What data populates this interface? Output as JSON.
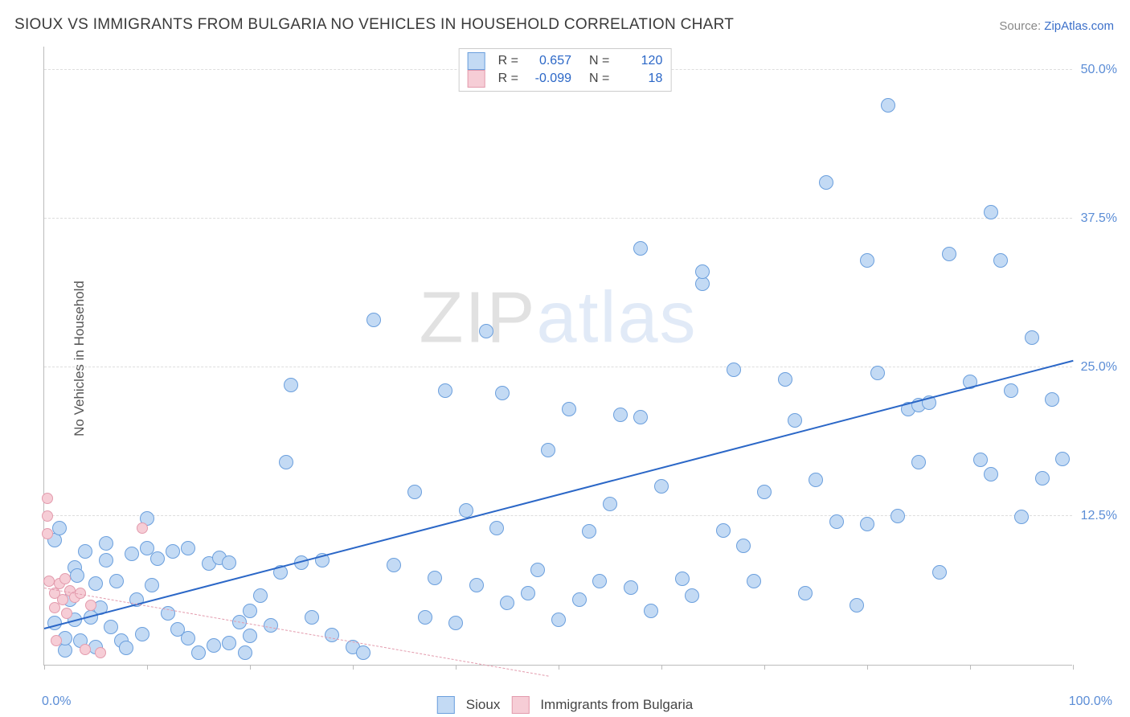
{
  "title": "SIOUX VS IMMIGRANTS FROM BULGARIA NO VEHICLES IN HOUSEHOLD CORRELATION CHART",
  "source_prefix": "Source: ",
  "source_link": "ZipAtlas.com",
  "y_axis_label": "No Vehicles in Household",
  "watermark_a": "ZIP",
  "watermark_b": "atlas",
  "chart": {
    "type": "scatter",
    "x_domain": [
      0,
      100
    ],
    "y_domain": [
      0,
      52
    ],
    "x_ticks_marks": [
      0,
      10,
      20,
      30,
      40,
      50,
      60,
      70,
      80,
      90,
      100
    ],
    "x_tick_labels": {
      "min": "0.0%",
      "max": "100.0%"
    },
    "y_gridlines": [
      12.5,
      25.0,
      37.5,
      50.0
    ],
    "y_tick_labels": [
      "12.5%",
      "25.0%",
      "37.5%",
      "50.0%"
    ],
    "background_color": "#ffffff",
    "grid_color": "#dddddd",
    "axis_color": "#bbbbbb",
    "tick_label_color": "#5b8dd6",
    "marker_radius": 9,
    "marker_radius_small": 7,
    "series": [
      {
        "key": "sioux",
        "label": "Sioux",
        "fill": "#c3daf4",
        "stroke": "#6b9fdd",
        "trend_color": "#2b67c7",
        "trend_width": 2.5,
        "trend_style": "solid",
        "r_label": "R =",
        "r_value": "0.657",
        "n_label": "N =",
        "n_value": "120",
        "trend": {
          "x1": 0,
          "y1": 3.0,
          "x2": 100,
          "y2": 25.5
        },
        "points": [
          [
            1,
            3.5
          ],
          [
            1,
            10.5
          ],
          [
            1.5,
            11.5
          ],
          [
            2,
            1.2
          ],
          [
            2,
            2.2
          ],
          [
            2.5,
            5.5
          ],
          [
            3,
            3.8
          ],
          [
            3,
            8.2
          ],
          [
            3.2,
            7.5
          ],
          [
            3.5,
            2.0
          ],
          [
            4,
            9.5
          ],
          [
            4.5,
            4.0
          ],
          [
            5,
            1.5
          ],
          [
            5,
            6.8
          ],
          [
            5.5,
            4.8
          ],
          [
            6,
            10.2
          ],
          [
            6,
            8.8
          ],
          [
            6.5,
            3.2
          ],
          [
            7,
            7.0
          ],
          [
            7.5,
            2.0
          ],
          [
            8,
            1.4
          ],
          [
            8.5,
            9.3
          ],
          [
            9,
            5.5
          ],
          [
            9.5,
            2.6
          ],
          [
            10,
            9.8
          ],
          [
            10,
            12.3
          ],
          [
            10.5,
            6.7
          ],
          [
            11,
            8.9
          ],
          [
            12,
            4.3
          ],
          [
            12.5,
            9.5
          ],
          [
            13,
            3.0
          ],
          [
            14,
            2.2
          ],
          [
            14,
            9.8
          ],
          [
            15,
            1.0
          ],
          [
            16,
            8.5
          ],
          [
            16.5,
            1.6
          ],
          [
            17,
            9.0
          ],
          [
            18,
            1.8
          ],
          [
            18,
            8.6
          ],
          [
            19,
            3.6
          ],
          [
            19.5,
            1.0
          ],
          [
            20,
            4.5
          ],
          [
            20,
            2.4
          ],
          [
            21,
            5.8
          ],
          [
            22,
            3.3
          ],
          [
            23,
            7.8
          ],
          [
            23.5,
            17.0
          ],
          [
            24,
            23.5
          ],
          [
            25,
            8.6
          ],
          [
            26,
            4.0
          ],
          [
            27,
            8.8
          ],
          [
            28,
            2.5
          ],
          [
            30,
            1.5
          ],
          [
            31,
            1.0
          ],
          [
            32,
            29.0
          ],
          [
            34,
            8.4
          ],
          [
            36,
            14.5
          ],
          [
            37,
            4.0
          ],
          [
            38,
            7.3
          ],
          [
            39,
            23.0
          ],
          [
            40,
            3.5
          ],
          [
            41,
            13.0
          ],
          [
            42,
            6.7
          ],
          [
            43,
            28.0
          ],
          [
            44,
            11.5
          ],
          [
            44.5,
            22.8
          ],
          [
            45,
            5.2
          ],
          [
            47,
            6.0
          ],
          [
            48,
            8.0
          ],
          [
            49,
            18.0
          ],
          [
            50,
            3.8
          ],
          [
            51,
            21.5
          ],
          [
            52,
            5.5
          ],
          [
            53,
            11.2
          ],
          [
            54,
            7.0
          ],
          [
            55,
            13.5
          ],
          [
            56,
            21.0
          ],
          [
            57,
            6.5
          ],
          [
            58,
            20.8
          ],
          [
            58,
            35.0
          ],
          [
            59,
            4.5
          ],
          [
            60,
            15.0
          ],
          [
            62,
            7.2
          ],
          [
            63,
            5.8
          ],
          [
            64,
            32.0
          ],
          [
            64,
            33.0
          ],
          [
            66,
            11.3
          ],
          [
            67,
            24.8
          ],
          [
            68,
            10.0
          ],
          [
            69,
            7.0
          ],
          [
            70,
            14.5
          ],
          [
            72,
            24.0
          ],
          [
            73,
            20.5
          ],
          [
            74,
            6.0
          ],
          [
            75,
            15.5
          ],
          [
            76,
            40.5
          ],
          [
            77,
            12.0
          ],
          [
            79,
            5.0
          ],
          [
            80,
            11.8
          ],
          [
            80,
            34.0
          ],
          [
            81,
            24.5
          ],
          [
            82,
            47.0
          ],
          [
            83,
            12.5
          ],
          [
            84,
            21.5
          ],
          [
            85,
            17.0
          ],
          [
            85,
            21.8
          ],
          [
            86,
            22.0
          ],
          [
            87,
            7.8
          ],
          [
            88,
            34.5
          ],
          [
            90,
            23.8
          ],
          [
            91,
            17.2
          ],
          [
            92,
            16.0
          ],
          [
            92,
            38.0
          ],
          [
            93,
            34.0
          ],
          [
            94,
            23.0
          ],
          [
            95,
            12.4
          ],
          [
            96,
            27.5
          ],
          [
            97,
            15.7
          ],
          [
            98,
            22.3
          ],
          [
            99,
            17.3
          ]
        ]
      },
      {
        "key": "bulgaria",
        "label": "Immigrants from Bulgaria",
        "fill": "#f6cdd6",
        "stroke": "#e39bad",
        "trend_color": "#e39bad",
        "trend_width": 1,
        "trend_style": "dashed",
        "r_label": "R =",
        "r_value": "-0.099",
        "n_label": "N =",
        "n_value": "18",
        "trend": {
          "x1": 0,
          "y1": 6.4,
          "x2": 49,
          "y2": -1.0
        },
        "points": [
          [
            0.3,
            14.0
          ],
          [
            0.3,
            12.5
          ],
          [
            0.3,
            11.0
          ],
          [
            0.5,
            7.0
          ],
          [
            1.0,
            4.8
          ],
          [
            1.0,
            6.0
          ],
          [
            1.2,
            2.0
          ],
          [
            1.5,
            6.8
          ],
          [
            1.8,
            5.5
          ],
          [
            2.0,
            7.2
          ],
          [
            2.2,
            4.3
          ],
          [
            2.5,
            6.2
          ],
          [
            3.0,
            5.7
          ],
          [
            3.5,
            6.0
          ],
          [
            4.0,
            1.3
          ],
          [
            4.5,
            5.0
          ],
          [
            5.5,
            1.0
          ],
          [
            9.5,
            11.5
          ]
        ]
      }
    ]
  }
}
